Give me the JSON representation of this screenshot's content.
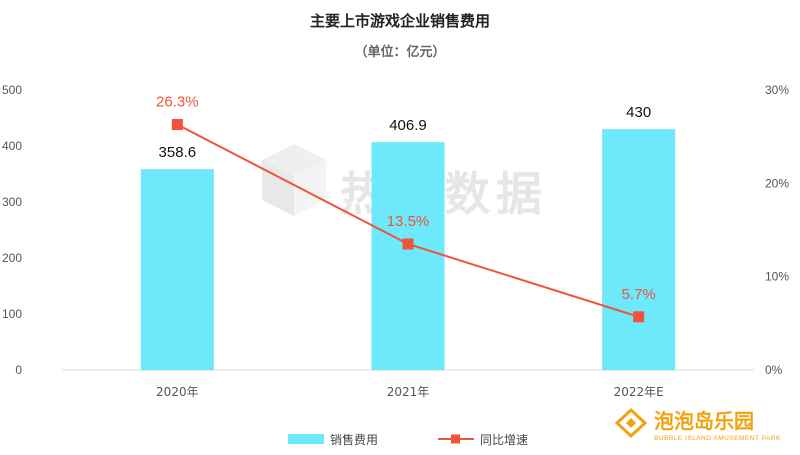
{
  "chart_data": {
    "type": "bar",
    "title": "主要上市游戏企业销售费用",
    "subtitle": "（单位：亿元）",
    "categories": [
      "2020年",
      "2021年",
      "2022年E"
    ],
    "series": [
      {
        "name": "销售费用",
        "type": "bar",
        "axis": "left",
        "values": [
          358.6,
          406.9,
          430
        ],
        "labels": [
          "358.6",
          "406.9",
          "430"
        ],
        "color": "#6ee8fb"
      },
      {
        "name": "同比增速",
        "type": "line",
        "axis": "right",
        "values": [
          26.3,
          13.5,
          5.7
        ],
        "labels": [
          "26.3%",
          "13.5%",
          "5.7%"
        ],
        "color": "#f0533a"
      }
    ],
    "y_left": {
      "min": 0,
      "max": 500,
      "ticks": [
        "0",
        "100",
        "200",
        "300",
        "400",
        "500"
      ]
    },
    "y_right": {
      "min": 0,
      "max": 30,
      "ticks": [
        "0%",
        "10%",
        "20%",
        "30%"
      ]
    },
    "legend_position": "bottom",
    "grid": false
  },
  "watermark": {
    "text": "热云数据"
  },
  "logo": {
    "text": "泡泡岛乐园",
    "subtext": "BUBBLE ISLAND AMUSEMENT PARK",
    "color": "#f2a20c"
  }
}
